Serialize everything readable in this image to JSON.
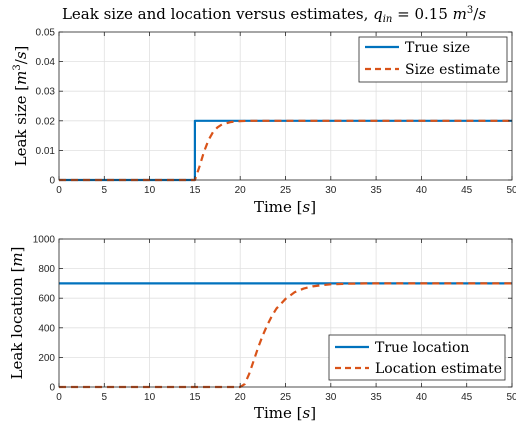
{
  "chart_data": [
    {
      "type": "line",
      "title": "Leak size and location versus estimates, q_in = 0.15 m^3/s",
      "xlabel": "Time [s]",
      "ylabel": "Leak size [m^3/s]",
      "xlim": [
        0,
        50
      ],
      "ylim": [
        0,
        0.05
      ],
      "xticks": [
        "0",
        "5",
        "10",
        "15",
        "20",
        "25",
        "30",
        "35",
        "40",
        "45",
        "50"
      ],
      "yticks": [
        "0",
        "0.01",
        "0.02",
        "0.03",
        "0.04",
        "0.05"
      ],
      "grid": true,
      "legend_position": "top-right",
      "series": [
        {
          "name": "True size",
          "color": "#0072bd",
          "style": "solid",
          "x": [
            0,
            15,
            15,
            50
          ],
          "y": [
            0,
            0,
            0.02,
            0.02
          ]
        },
        {
          "name": "Size estimate",
          "color": "#d95319",
          "style": "dashed",
          "x": [
            0,
            15,
            15.5,
            16,
            16.5,
            17,
            17.5,
            18,
            19,
            20,
            21,
            22,
            24,
            50
          ],
          "y": [
            0,
            0,
            0.0045,
            0.0095,
            0.0135,
            0.0162,
            0.0178,
            0.0188,
            0.0196,
            0.0199,
            0.02,
            0.02,
            0.02,
            0.02
          ]
        }
      ]
    },
    {
      "type": "line",
      "xlabel": "Time [s]",
      "ylabel": "Leak location [m]",
      "xlim": [
        0,
        50
      ],
      "ylim": [
        0,
        1000
      ],
      "xticks": [
        "0",
        "5",
        "10",
        "15",
        "20",
        "25",
        "30",
        "35",
        "40",
        "45",
        "50"
      ],
      "yticks": [
        "0",
        "200",
        "400",
        "600",
        "800",
        "1000"
      ],
      "grid": true,
      "legend_position": "bottom-right",
      "series": [
        {
          "name": "True location",
          "color": "#0072bd",
          "style": "solid",
          "x": [
            0,
            50
          ],
          "y": [
            700,
            700
          ]
        },
        {
          "name": "Location estimate",
          "color": "#d95319",
          "style": "dashed",
          "x": [
            0,
            20,
            20.5,
            21,
            21.5,
            22,
            22.5,
            23,
            23.5,
            24,
            25,
            26,
            27,
            28,
            29,
            30,
            32,
            34,
            50
          ],
          "y": [
            0,
            0,
            20,
            90,
            180,
            270,
            350,
            420,
            480,
            530,
            595,
            640,
            665,
            680,
            688,
            694,
            698,
            700,
            700
          ]
        }
      ]
    }
  ]
}
